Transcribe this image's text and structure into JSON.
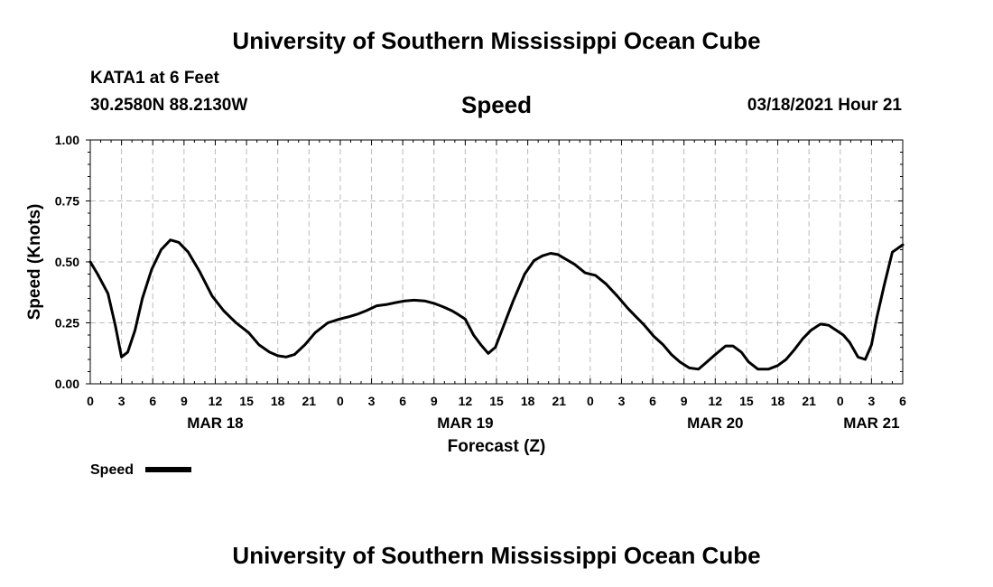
{
  "header": {
    "title_top": "University of Southern Mississippi Ocean Cube",
    "title_bottom": "University of Southern Mississippi Ocean Cube",
    "station": "KATA1 at 6 Feet",
    "coordinates": "30.2580N 88.2130W",
    "datetime": "03/18/2021 Hour 21"
  },
  "colors": {
    "line": "#000000",
    "grid": "#bbbbbb",
    "background": "#ffffff"
  },
  "chart_data": {
    "type": "line",
    "title": "Speed",
    "xlabel": "Forecast (Z)",
    "ylabel": "Speed (Knots)",
    "xlim": [
      0,
      78
    ],
    "ylim": [
      0,
      1
    ],
    "yticks": [
      0,
      0.25,
      0.5,
      0.75,
      1
    ],
    "ytick_labels": [
      "0.00",
      "0.25",
      "0.50",
      "0.75",
      "1.00"
    ],
    "xticks": [
      0,
      3,
      6,
      9,
      12,
      15,
      18,
      21,
      24,
      27,
      30,
      33,
      36,
      39,
      42,
      45,
      48,
      51,
      54,
      57,
      60,
      63,
      66,
      69,
      72,
      75,
      78
    ],
    "xtick_labels": [
      "0",
      "3",
      "6",
      "9",
      "12",
      "15",
      "18",
      "21",
      "0",
      "3",
      "6",
      "9",
      "12",
      "15",
      "18",
      "21",
      "0",
      "3",
      "6",
      "9",
      "12",
      "15",
      "18",
      "21",
      "0",
      "3",
      "6"
    ],
    "day_labels": [
      {
        "x": 12,
        "label": "MAR 18"
      },
      {
        "x": 36,
        "label": "MAR 19"
      },
      {
        "x": 60,
        "label": "MAR 20"
      },
      {
        "x": 75,
        "label": "MAR 21"
      }
    ],
    "grid": true,
    "legend": "bottom-left",
    "series": [
      {
        "name": "Speed",
        "x": [
          0,
          0.7,
          1.7,
          2.4,
          3,
          3.6,
          4.3,
          5,
          5.9,
          6.8,
          7.7,
          8.5,
          9.4,
          10.5,
          11.7,
          12.8,
          14,
          15.2,
          16.2,
          17.2,
          18,
          18.8,
          19.6,
          20.6,
          21.6,
          22.8,
          23.9,
          24.8,
          25.6,
          26.5,
          27.5,
          28.4,
          29.3,
          30.2,
          31.1,
          32.1,
          33,
          33.9,
          34.7,
          35.3,
          36,
          36.8,
          37.5,
          38.2,
          38.9,
          39.7,
          40.6,
          41.7,
          42.6,
          43.4,
          44.2,
          44.9,
          45.7,
          46.5,
          47.5,
          48.5,
          49.5,
          50.6,
          51.6,
          52.4,
          53.1,
          53.6,
          54.1,
          55,
          55.8,
          56.6,
          57.5,
          58.4,
          59.2,
          60,
          61,
          61.7,
          62.5,
          63.2,
          64.1,
          65.1,
          66,
          66.8,
          67.6,
          68.4,
          69.2,
          70.1,
          70.9,
          71.6,
          72.3,
          72.9,
          73.7,
          74.4,
          75,
          75.5,
          76.2,
          77,
          78
        ],
        "values": [
          0.5,
          0.45,
          0.37,
          0.24,
          0.11,
          0.13,
          0.22,
          0.35,
          0.47,
          0.55,
          0.59,
          0.58,
          0.54,
          0.46,
          0.36,
          0.3,
          0.25,
          0.21,
          0.16,
          0.13,
          0.115,
          0.11,
          0.12,
          0.16,
          0.21,
          0.25,
          0.265,
          0.275,
          0.285,
          0.3,
          0.32,
          0.325,
          0.333,
          0.34,
          0.343,
          0.34,
          0.33,
          0.315,
          0.3,
          0.285,
          0.265,
          0.2,
          0.16,
          0.125,
          0.15,
          0.24,
          0.34,
          0.45,
          0.505,
          0.525,
          0.535,
          0.53,
          0.51,
          0.49,
          0.455,
          0.445,
          0.41,
          0.36,
          0.31,
          0.275,
          0.245,
          0.22,
          0.195,
          0.16,
          0.12,
          0.09,
          0.065,
          0.06,
          0.09,
          0.12,
          0.155,
          0.155,
          0.13,
          0.09,
          0.06,
          0.06,
          0.075,
          0.1,
          0.14,
          0.185,
          0.22,
          0.245,
          0.24,
          0.22,
          0.2,
          0.17,
          0.11,
          0.1,
          0.16,
          0.27,
          0.4,
          0.54,
          0.57
        ]
      }
    ]
  },
  "legend": {
    "label": "Speed"
  }
}
